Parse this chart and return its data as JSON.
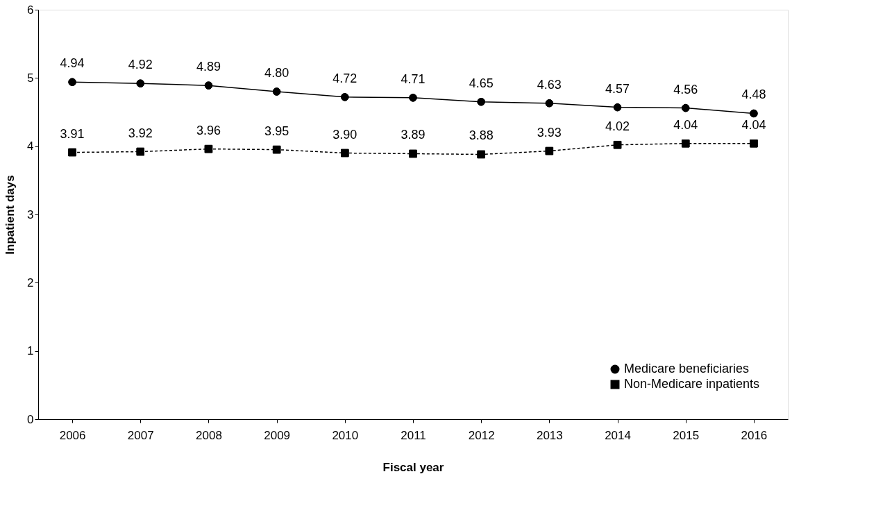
{
  "chart_data": {
    "type": "line",
    "xlabel": "Fiscal year",
    "ylabel": "Inpatient days",
    "categories": [
      "2006",
      "2007",
      "2008",
      "2009",
      "2010",
      "2011",
      "2012",
      "2013",
      "2014",
      "2015",
      "2016"
    ],
    "series": [
      {
        "name": "Medicare beneficiaries",
        "color": "#000000",
        "marker": "circle",
        "line_style": "solid",
        "values": [
          4.94,
          4.92,
          4.89,
          4.8,
          4.72,
          4.71,
          4.65,
          4.63,
          4.57,
          4.56,
          4.48
        ],
        "value_labels": [
          "4.94",
          "4.92",
          "4.89",
          "4.80",
          "4.72",
          "4.71",
          "4.65",
          "4.63",
          "4.57",
          "4.56",
          "4.48"
        ]
      },
      {
        "name": "Non-Medicare inpatients",
        "color": "#000000",
        "marker": "square",
        "line_style": "dashed",
        "values": [
          3.91,
          3.92,
          3.96,
          3.95,
          3.9,
          3.89,
          3.88,
          3.93,
          4.02,
          4.04,
          4.04
        ],
        "value_labels": [
          "3.91",
          "3.92",
          "3.96",
          "3.95",
          "3.90",
          "3.89",
          "3.88",
          "3.93",
          "4.02",
          "4.04",
          "4.04"
        ]
      }
    ],
    "ylim": [
      0,
      6
    ],
    "yticks": [
      0,
      1,
      2,
      3,
      4,
      5,
      6
    ],
    "grid": false,
    "legend": "bottom right"
  }
}
